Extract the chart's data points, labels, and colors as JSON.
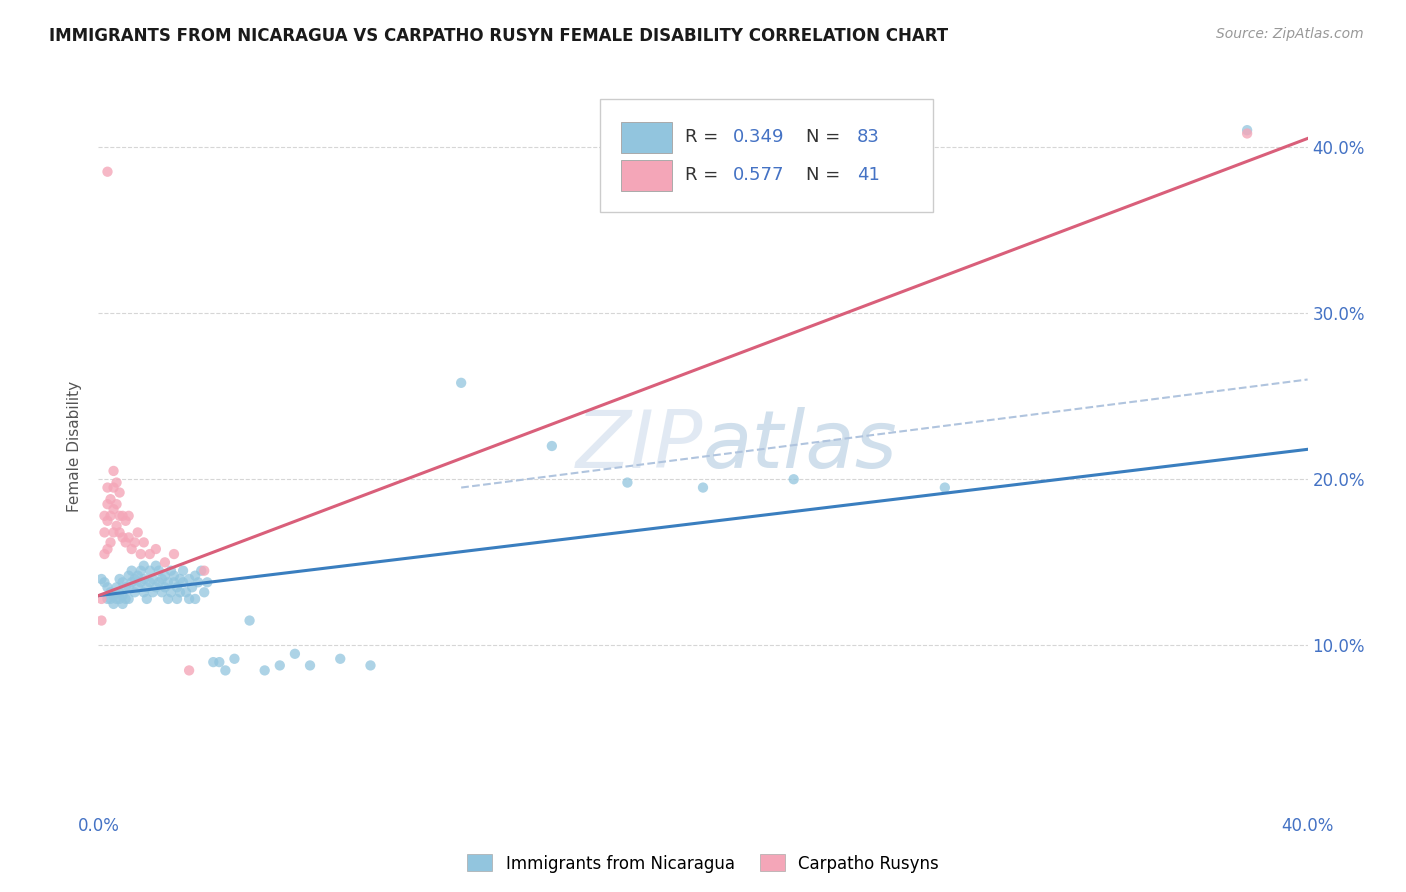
{
  "title": "IMMIGRANTS FROM NICARAGUA VS CARPATHO RUSYN FEMALE DISABILITY CORRELATION CHART",
  "source": "Source: ZipAtlas.com",
  "ylabel": "Female Disability",
  "xlim": [
    0.0,
    0.4
  ],
  "ylim": [
    0.0,
    0.44
  ],
  "y_tick_positions": [
    0.1,
    0.2,
    0.3,
    0.4
  ],
  "y_tick_labels": [
    "10.0%",
    "20.0%",
    "30.0%",
    "40.0%"
  ],
  "x_tick_positions": [
    0.0,
    0.05,
    0.1,
    0.15,
    0.2,
    0.25,
    0.3,
    0.35,
    0.4
  ],
  "x_tick_labels": [
    "0.0%",
    "",
    "",
    "",
    "",
    "",
    "",
    "",
    "40.0%"
  ],
  "color_blue": "#92c5de",
  "color_pink": "#f4a6b8",
  "color_line_blue": "#3a7ebf",
  "color_line_pink": "#d95f7a",
  "color_dashed": "#b0c4de",
  "blue_line": [
    [
      0.0,
      0.13
    ],
    [
      0.4,
      0.218
    ]
  ],
  "pink_line": [
    [
      0.0,
      0.13
    ],
    [
      0.4,
      0.405
    ]
  ],
  "dashed_line": [
    [
      0.12,
      0.195
    ],
    [
      0.4,
      0.26
    ]
  ],
  "blue_scatter": [
    [
      0.001,
      0.14
    ],
    [
      0.002,
      0.138
    ],
    [
      0.003,
      0.135
    ],
    [
      0.003,
      0.128
    ],
    [
      0.004,
      0.132
    ],
    [
      0.004,
      0.128
    ],
    [
      0.005,
      0.13
    ],
    [
      0.005,
      0.125
    ],
    [
      0.006,
      0.135
    ],
    [
      0.006,
      0.128
    ],
    [
      0.007,
      0.132
    ],
    [
      0.007,
      0.128
    ],
    [
      0.007,
      0.14
    ],
    [
      0.008,
      0.138
    ],
    [
      0.008,
      0.13
    ],
    [
      0.008,
      0.125
    ],
    [
      0.009,
      0.135
    ],
    [
      0.009,
      0.128
    ],
    [
      0.01,
      0.142
    ],
    [
      0.01,
      0.135
    ],
    [
      0.01,
      0.128
    ],
    [
      0.011,
      0.138
    ],
    [
      0.011,
      0.145
    ],
    [
      0.012,
      0.132
    ],
    [
      0.012,
      0.14
    ],
    [
      0.013,
      0.135
    ],
    [
      0.013,
      0.142
    ],
    [
      0.014,
      0.138
    ],
    [
      0.014,
      0.145
    ],
    [
      0.015,
      0.132
    ],
    [
      0.015,
      0.14
    ],
    [
      0.015,
      0.148
    ],
    [
      0.016,
      0.135
    ],
    [
      0.016,
      0.128
    ],
    [
      0.017,
      0.138
    ],
    [
      0.017,
      0.145
    ],
    [
      0.018,
      0.132
    ],
    [
      0.018,
      0.14
    ],
    [
      0.019,
      0.135
    ],
    [
      0.019,
      0.148
    ],
    [
      0.02,
      0.138
    ],
    [
      0.02,
      0.145
    ],
    [
      0.021,
      0.132
    ],
    [
      0.021,
      0.14
    ],
    [
      0.022,
      0.135
    ],
    [
      0.022,
      0.142
    ],
    [
      0.023,
      0.128
    ],
    [
      0.023,
      0.138
    ],
    [
      0.024,
      0.145
    ],
    [
      0.024,
      0.132
    ],
    [
      0.025,
      0.138
    ],
    [
      0.025,
      0.142
    ],
    [
      0.026,
      0.135
    ],
    [
      0.026,
      0.128
    ],
    [
      0.027,
      0.14
    ],
    [
      0.027,
      0.132
    ],
    [
      0.028,
      0.145
    ],
    [
      0.028,
      0.138
    ],
    [
      0.029,
      0.132
    ],
    [
      0.03,
      0.14
    ],
    [
      0.03,
      0.128
    ],
    [
      0.031,
      0.135
    ],
    [
      0.032,
      0.142
    ],
    [
      0.032,
      0.128
    ],
    [
      0.033,
      0.138
    ],
    [
      0.034,
      0.145
    ],
    [
      0.035,
      0.132
    ],
    [
      0.036,
      0.138
    ],
    [
      0.038,
      0.09
    ],
    [
      0.04,
      0.09
    ],
    [
      0.042,
      0.085
    ],
    [
      0.045,
      0.092
    ],
    [
      0.05,
      0.115
    ],
    [
      0.055,
      0.085
    ],
    [
      0.06,
      0.088
    ],
    [
      0.065,
      0.095
    ],
    [
      0.07,
      0.088
    ],
    [
      0.08,
      0.092
    ],
    [
      0.09,
      0.088
    ],
    [
      0.12,
      0.258
    ],
    [
      0.15,
      0.22
    ],
    [
      0.175,
      0.198
    ],
    [
      0.2,
      0.195
    ],
    [
      0.23,
      0.2
    ],
    [
      0.28,
      0.195
    ],
    [
      0.38,
      0.41
    ]
  ],
  "pink_scatter": [
    [
      0.001,
      0.115
    ],
    [
      0.001,
      0.128
    ],
    [
      0.002,
      0.155
    ],
    [
      0.002,
      0.168
    ],
    [
      0.002,
      0.178
    ],
    [
      0.003,
      0.158
    ],
    [
      0.003,
      0.175
    ],
    [
      0.003,
      0.185
    ],
    [
      0.003,
      0.195
    ],
    [
      0.004,
      0.162
    ],
    [
      0.004,
      0.178
    ],
    [
      0.004,
      0.188
    ],
    [
      0.005,
      0.168
    ],
    [
      0.005,
      0.182
    ],
    [
      0.005,
      0.195
    ],
    [
      0.005,
      0.205
    ],
    [
      0.006,
      0.172
    ],
    [
      0.006,
      0.185
    ],
    [
      0.006,
      0.198
    ],
    [
      0.007,
      0.178
    ],
    [
      0.007,
      0.192
    ],
    [
      0.007,
      0.168
    ],
    [
      0.008,
      0.165
    ],
    [
      0.008,
      0.178
    ],
    [
      0.009,
      0.162
    ],
    [
      0.009,
      0.175
    ],
    [
      0.01,
      0.165
    ],
    [
      0.01,
      0.178
    ],
    [
      0.011,
      0.158
    ],
    [
      0.012,
      0.162
    ],
    [
      0.013,
      0.168
    ],
    [
      0.014,
      0.155
    ],
    [
      0.015,
      0.162
    ],
    [
      0.017,
      0.155
    ],
    [
      0.019,
      0.158
    ],
    [
      0.022,
      0.15
    ],
    [
      0.025,
      0.155
    ],
    [
      0.03,
      0.085
    ],
    [
      0.035,
      0.145
    ],
    [
      0.003,
      0.385
    ],
    [
      0.38,
      0.408
    ]
  ]
}
